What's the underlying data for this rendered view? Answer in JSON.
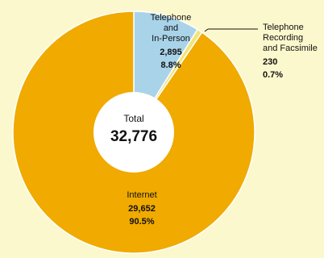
{
  "chart_data": {
    "type": "pie",
    "total_label": "Total",
    "total_value": "32,776",
    "slices": [
      {
        "name": "Telephone and In-Person",
        "value": 2895,
        "value_label": "2,895",
        "percent_label": "8.8%",
        "color": "#a9d3e8"
      },
      {
        "name": "Telephone Recording and Facsimile",
        "value": 230,
        "value_label": "230",
        "percent_label": "0.7%",
        "color": "#f2e47a"
      },
      {
        "name": "Internet",
        "value": 29652,
        "value_label": "29,652",
        "percent_label": "90.5%",
        "color": "#f0aa00"
      }
    ]
  },
  "labels": {
    "telephone_lines": [
      "Telephone",
      "and",
      "In-Person"
    ],
    "recording_lines": [
      "Telephone",
      "Recording",
      "and Facsimile"
    ],
    "internet_lines": [
      "Internet"
    ]
  }
}
